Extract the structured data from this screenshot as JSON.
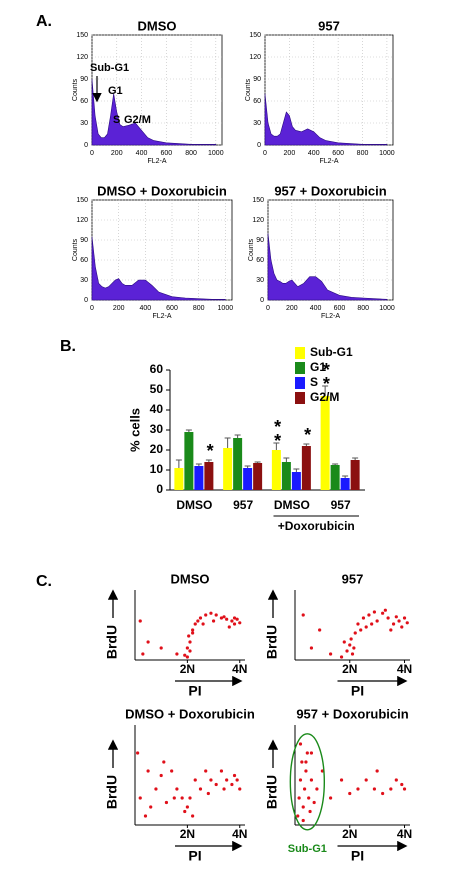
{
  "panel_labels": [
    "A.",
    "B.",
    "C."
  ],
  "chart_data": [
    {
      "type": "area",
      "title": "DMSO",
      "x_label": "FL2-A",
      "y_label": "Counts",
      "color": "#5b22d6",
      "x": [
        0,
        25,
        50,
        75,
        100,
        125,
        150,
        175,
        200,
        225,
        250,
        300,
        350,
        400,
        450,
        500,
        600,
        700,
        800,
        900,
        1000
      ],
      "values": [
        90,
        40,
        15,
        10,
        10,
        15,
        40,
        70,
        45,
        28,
        25,
        27,
        30,
        20,
        10,
        6,
        3,
        2,
        1,
        1,
        1
      ],
      "xlim": [
        0,
        1050
      ],
      "ylim": [
        0,
        150
      ],
      "xticks": [
        0,
        200,
        400,
        600,
        800,
        1000
      ],
      "yticks": [
        0,
        30,
        60,
        90,
        120,
        150
      ],
      "annotations": [
        "Sub-G1",
        "G1",
        "S",
        "G2/M"
      ]
    },
    {
      "type": "area",
      "title": "957",
      "x_label": "FL2-A",
      "y_label": "Counts",
      "color": "#5b22d6",
      "x": [
        0,
        25,
        50,
        75,
        100,
        125,
        150,
        175,
        200,
        225,
        250,
        300,
        350,
        400,
        450,
        500,
        600,
        700,
        800,
        900,
        1000
      ],
      "values": [
        70,
        30,
        15,
        12,
        12,
        15,
        30,
        45,
        40,
        25,
        20,
        18,
        22,
        18,
        10,
        6,
        3,
        2,
        1,
        1,
        1
      ],
      "xlim": [
        0,
        1050
      ],
      "ylim": [
        0,
        150
      ],
      "xticks": [
        0,
        200,
        400,
        600,
        800,
        1000
      ],
      "yticks": [
        0,
        30,
        60,
        90,
        120,
        150
      ]
    },
    {
      "type": "area",
      "title": "DMSO + Doxorubicin",
      "x_label": "FL2-A",
      "y_label": "Counts",
      "color": "#5b22d6",
      "x": [
        0,
        25,
        50,
        75,
        100,
        125,
        150,
        175,
        200,
        225,
        250,
        300,
        350,
        400,
        450,
        500,
        600,
        700,
        800,
        900,
        1000
      ],
      "values": [
        95,
        50,
        25,
        20,
        18,
        20,
        25,
        30,
        32,
        25,
        22,
        22,
        30,
        30,
        22,
        12,
        5,
        3,
        2,
        1,
        1
      ],
      "xlim": [
        0,
        1050
      ],
      "ylim": [
        0,
        150
      ],
      "xticks": [
        0,
        200,
        400,
        600,
        800,
        1000
      ],
      "yticks": [
        0,
        30,
        60,
        90,
        120,
        150
      ]
    },
    {
      "type": "area",
      "title": "957 + Doxorubicin",
      "x_label": "FL2-A",
      "y_label": "Counts",
      "color": "#5b22d6",
      "x": [
        0,
        25,
        50,
        75,
        100,
        125,
        150,
        175,
        200,
        225,
        250,
        300,
        350,
        400,
        450,
        500,
        600,
        700,
        800,
        900,
        1000
      ],
      "values": [
        100,
        60,
        40,
        30,
        28,
        25,
        25,
        28,
        30,
        25,
        20,
        25,
        35,
        35,
        28,
        15,
        7,
        4,
        3,
        2,
        1
      ],
      "xlim": [
        0,
        1050
      ],
      "ylim": [
        0,
        150
      ],
      "xticks": [
        0,
        200,
        400,
        600,
        800,
        1000
      ],
      "yticks": [
        0,
        30,
        60,
        90,
        120,
        150
      ]
    },
    {
      "type": "bar",
      "y_label": "% cells",
      "categories": [
        "DMSO",
        "957",
        "DMSO",
        "957"
      ],
      "group_label": "+Doxorubicin",
      "ylim": [
        0,
        60
      ],
      "yticks": [
        0,
        10,
        20,
        30,
        40,
        50,
        60
      ],
      "legend": "top-right",
      "series": [
        {
          "name": "Sub-G1",
          "color": "#ffff00",
          "values": [
            11,
            21,
            20,
            47
          ],
          "errors": [
            4,
            5,
            3.5,
            5
          ],
          "annotations": [
            null,
            null,
            "**",
            "**"
          ]
        },
        {
          "name": "G1",
          "color": "#1a8a1a",
          "values": [
            29,
            26,
            14,
            12.5
          ],
          "errors": [
            1,
            1.5,
            2,
            0.5
          ],
          "annotations": [
            null,
            null,
            null,
            null
          ]
        },
        {
          "name": "S",
          "color": "#1a1aff",
          "values": [
            12,
            11,
            9,
            6
          ],
          "errors": [
            1,
            1,
            1.5,
            1
          ],
          "annotations": [
            null,
            null,
            null,
            null
          ]
        },
        {
          "name": "G2/M",
          "color": "#8b1010",
          "values": [
            14,
            13.5,
            22,
            15
          ],
          "errors": [
            1,
            0.5,
            1,
            1
          ],
          "annotations": [
            "*",
            null,
            "*",
            null
          ]
        }
      ]
    },
    {
      "type": "scatter",
      "title": "DMSO",
      "x_label": "PI",
      "y_label": "BrdU",
      "color": "#e0101a",
      "xlim": [
        0,
        4.2
      ],
      "ylim": [
        0,
        10
      ],
      "xticks": [
        {
          "value": 2,
          "label": "2N"
        },
        {
          "value": 4,
          "label": "4N"
        }
      ],
      "x": [
        0.2,
        0.5,
        0.3,
        1.0,
        1.6,
        2.0,
        2.0,
        2.1,
        2.05,
        2.2,
        2.3,
        2.4,
        2.5,
        2.7,
        2.9,
        3.1,
        3.3,
        3.5,
        3.7,
        3.8,
        3.9,
        4.0,
        3.6,
        3.8,
        2.6,
        2.2,
        1.9,
        2.1,
        3.0,
        3.4
      ],
      "values": [
        6.5,
        3,
        1,
        2,
        1,
        0.5,
        2,
        3,
        4,
        5,
        6,
        6.5,
        7,
        7.5,
        7.8,
        7.5,
        7,
        6.8,
        6.5,
        6,
        6.8,
        6.2,
        5.5,
        7,
        6,
        4.5,
        0.8,
        1.5,
        6.5,
        7.2
      ]
    },
    {
      "type": "scatter",
      "title": "957",
      "x_label": "PI",
      "y_label": "BrdU",
      "color": "#e0101a",
      "xlim": [
        0,
        4.2
      ],
      "ylim": [
        0,
        10
      ],
      "xticks": [
        {
          "value": 2,
          "label": "2N"
        },
        {
          "value": 4,
          "label": "4N"
        }
      ],
      "x": [
        0.3,
        0.6,
        0.9,
        1.3,
        1.7,
        1.9,
        2.0,
        2.05,
        2.1,
        2.2,
        2.3,
        2.5,
        2.7,
        2.9,
        3.0,
        3.2,
        3.4,
        3.6,
        3.8,
        3.9,
        4.0,
        4.1,
        2.4,
        2.8,
        3.3,
        3.7,
        1.8,
        2.15,
        2.6,
        3.5
      ],
      "values": [
        7.5,
        2,
        5,
        1,
        0.5,
        1.5,
        2.5,
        3.5,
        1,
        4.5,
        6,
        7,
        7.5,
        8,
        6.5,
        7.8,
        7,
        6,
        6.5,
        5.5,
        7,
        6.2,
        5,
        6,
        8.3,
        7.2,
        3,
        2,
        5.5,
        5
      ]
    },
    {
      "type": "scatter",
      "title": "DMSO + Doxorubicin",
      "x_label": "PI",
      "y_label": "BrdU",
      "color": "#e0101a",
      "xlim": [
        0,
        4.2
      ],
      "ylim": [
        0,
        10
      ],
      "xticks": [
        {
          "value": 2,
          "label": "2N"
        },
        {
          "value": 4,
          "label": "4N"
        }
      ],
      "x": [
        0.1,
        0.2,
        0.4,
        0.5,
        0.8,
        1.0,
        1.2,
        1.4,
        1.6,
        1.8,
        1.9,
        2.0,
        2.1,
        2.3,
        2.5,
        2.7,
        2.9,
        3.1,
        3.3,
        3.5,
        3.7,
        3.9,
        4.0,
        0.6,
        1.1,
        1.5,
        2.2,
        2.8,
        3.4,
        3.8
      ],
      "values": [
        8,
        3,
        1,
        6,
        4,
        5.5,
        2.5,
        6,
        4,
        3,
        1.5,
        2,
        3,
        5,
        4,
        6,
        5,
        4.5,
        6,
        5,
        4.5,
        5,
        4,
        2,
        7,
        3,
        1,
        3.5,
        4,
        5.5
      ]
    },
    {
      "type": "scatter",
      "title": "957 + Doxorubicin",
      "x_label": "PI",
      "y_label": "BrdU",
      "color": "#e0101a",
      "xlim": [
        0,
        4.2
      ],
      "ylim": [
        0,
        10
      ],
      "xticks": [
        {
          "value": 2,
          "label": "2N"
        },
        {
          "value": 4,
          "label": "4N"
        }
      ],
      "annotation": "Sub-G1",
      "x": [
        0.1,
        0.15,
        0.2,
        0.25,
        0.3,
        0.35,
        0.4,
        0.45,
        0.5,
        0.55,
        0.6,
        0.7,
        0.8,
        0.2,
        0.3,
        1.0,
        1.3,
        1.7,
        2.0,
        2.3,
        2.6,
        2.9,
        3.2,
        3.5,
        3.7,
        3.9,
        4.0,
        0.4,
        0.6,
        3.0
      ],
      "values": [
        1,
        3,
        5,
        7,
        2,
        4,
        6,
        8,
        3,
        1.5,
        5,
        2.5,
        4,
        9,
        0.5,
        6,
        3,
        5,
        3.5,
        4,
        5,
        4,
        3.5,
        4,
        5,
        4.5,
        4,
        7,
        8,
        6
      ]
    }
  ]
}
